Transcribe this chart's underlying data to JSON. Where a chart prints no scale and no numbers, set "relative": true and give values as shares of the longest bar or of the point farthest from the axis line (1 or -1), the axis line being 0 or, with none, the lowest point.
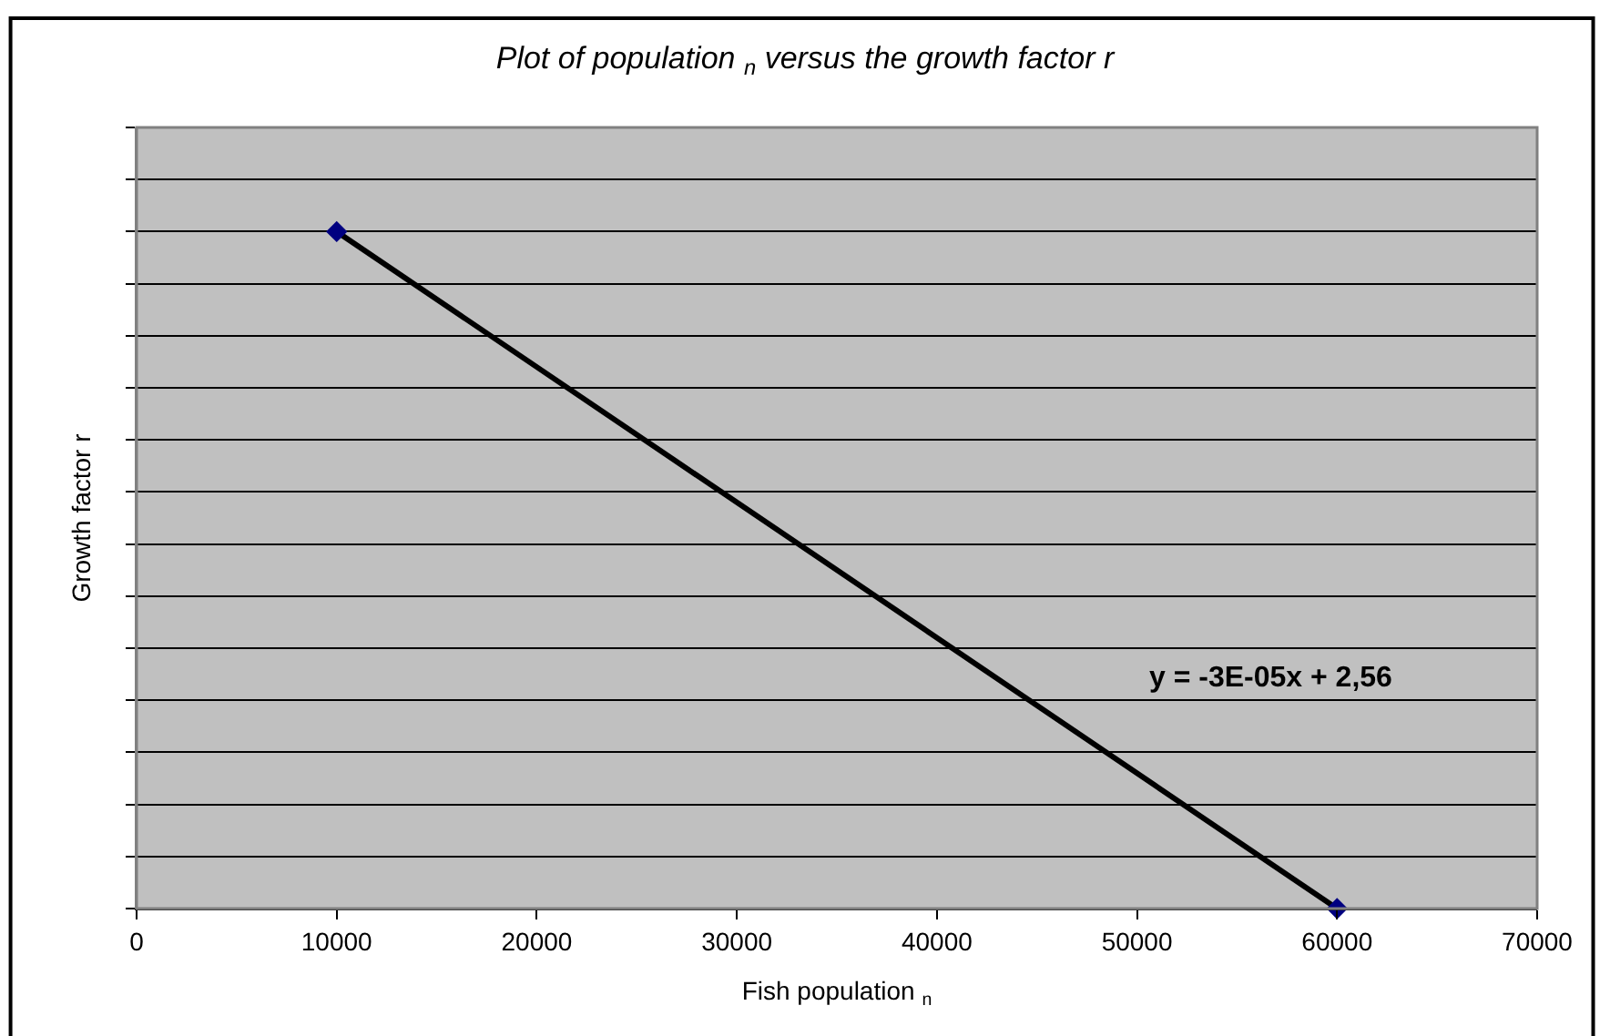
{
  "chart_data": {
    "type": "line",
    "title": "Plot of population $_{n}$ versus the growth factor r",
    "xlabel": "Fish population $_{n}$",
    "ylabel": "Growth factor r",
    "relative": true,
    "xlim": [
      0,
      70000
    ],
    "xticks": [
      0,
      10000,
      20000,
      30000,
      40000,
      50000,
      60000,
      70000
    ],
    "grid": "y",
    "legend": false,
    "series": [
      {
        "x": [
          10000,
          60000
        ],
        "values": [
          1,
          0
        ],
        "color": "#000000",
        "colors": [
          "#000080",
          "#000080"
        ],
        "marker": "diamond",
        "line_style": "solid"
      }
    ],
    "annotations": [
      "y = -3E-05x + 2,56"
    ]
  }
}
